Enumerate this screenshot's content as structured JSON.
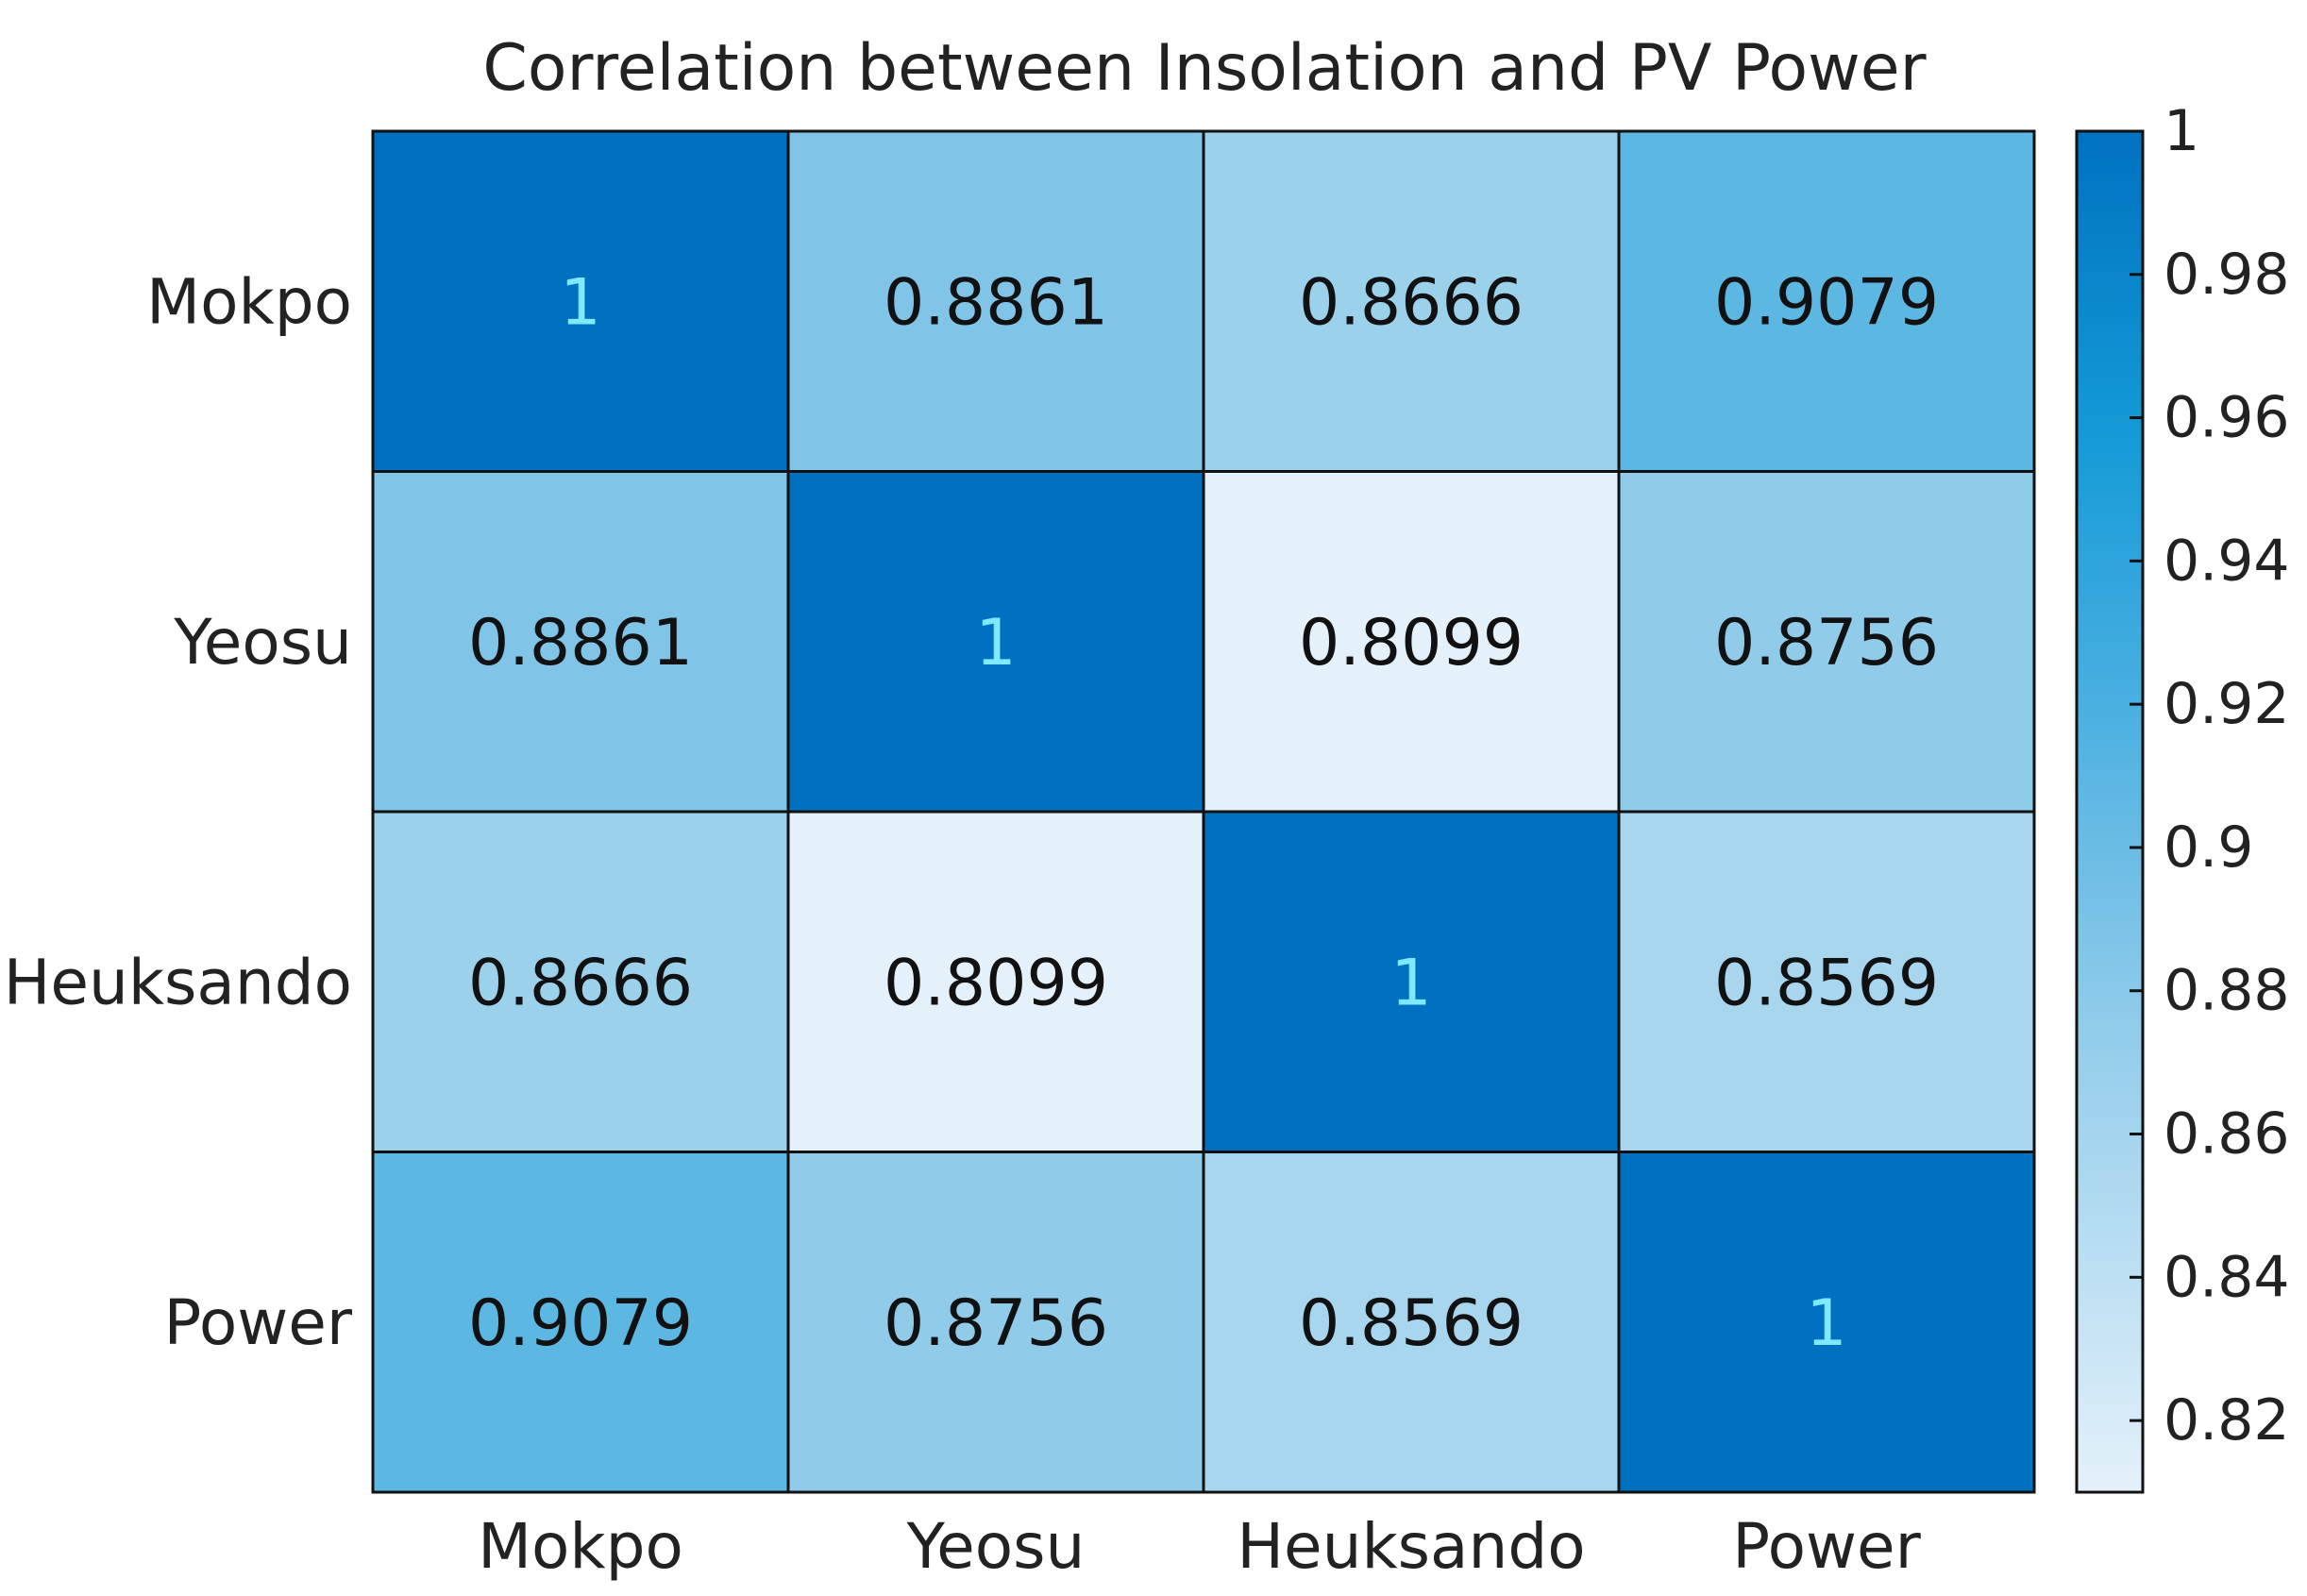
{
  "chart_data": {
    "type": "heatmap",
    "title": "Correlation between Insolation and PV Power",
    "rows": [
      "Mokpo",
      "Yeosu",
      "Heuksando",
      "Power"
    ],
    "columns": [
      "Mokpo",
      "Yeosu",
      "Heuksando",
      "Power"
    ],
    "values": [
      [
        "1",
        "0.8861",
        "0.8666",
        "0.9079"
      ],
      [
        "0.8861",
        "1",
        "0.8099",
        "0.8756"
      ],
      [
        "0.8666",
        "0.8099",
        "1",
        "0.8569"
      ],
      [
        "0.9079",
        "0.8756",
        "0.8569",
        "1"
      ]
    ],
    "colorbar": {
      "min": 0.81,
      "max": 1.0,
      "ticks": [
        "1",
        "0.98",
        "0.96",
        "0.94",
        "0.92",
        "0.9",
        "0.88",
        "0.86",
        "0.84",
        "0.82"
      ],
      "tick_values": [
        1.0,
        0.98,
        0.96,
        0.94,
        0.92,
        0.9,
        0.88,
        0.86,
        0.84,
        0.82
      ]
    },
    "colors": {
      "low": "#e4f1fa",
      "mid": "#44ade0",
      "high": "#0071c1",
      "dark_text": "#111111",
      "light_text": "#7fe9ff"
    }
  }
}
